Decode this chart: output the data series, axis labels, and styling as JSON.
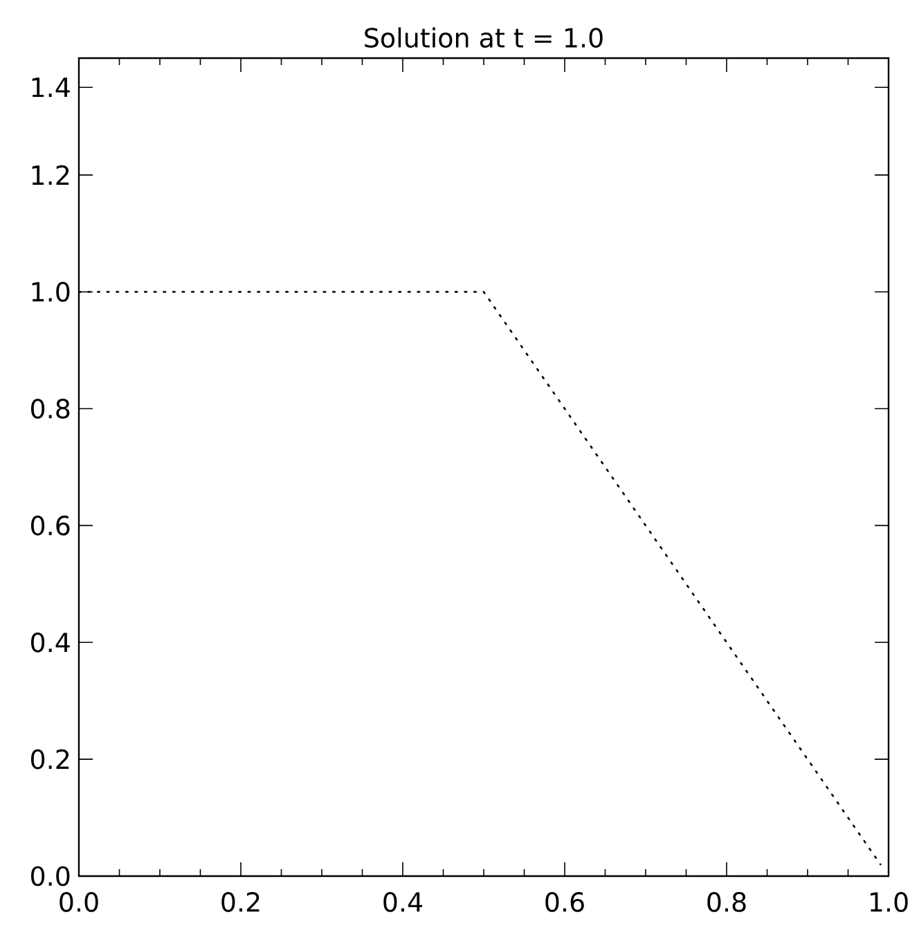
{
  "chart_data": {
    "type": "line",
    "title": "Solution at t = 1.0",
    "x": [
      0,
      0.5,
      0.99
    ],
    "series": [
      {
        "color": "#000000",
        "values": [
          1.0,
          1.0,
          0.02
        ],
        "line_style": "dotted"
      }
    ],
    "xlim": [
      0,
      1
    ],
    "ylim": [
      0,
      1.4
    ],
    "xticks": [
      {
        "value": 0,
        "label": "0.0"
      },
      0.2,
      0.4,
      0.6,
      0.8,
      {
        "value": 1,
        "label": "1.0"
      }
    ],
    "yticks": [
      {
        "value": 0,
        "label": "0.0"
      },
      0.2,
      0.4,
      0.6,
      0.8,
      {
        "value": 1,
        "label": "1.0"
      },
      1.2,
      {
        "value": 1.35,
        "label": "1.4"
      }
    ],
    "grid": false,
    "marker": "none"
  }
}
